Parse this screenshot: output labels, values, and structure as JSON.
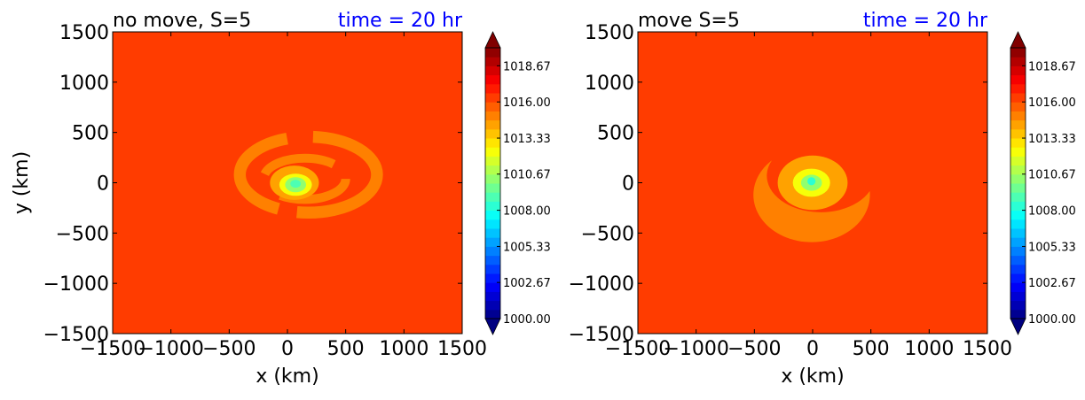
{
  "chart_data": [
    {
      "type": "contourf",
      "title_left": "no move, S=5",
      "title_right": "time = 20 hr",
      "title_right_color": "#0000ff",
      "xlabel": "x (km)",
      "ylabel": "y (km)",
      "xlim": [
        -1500,
        1500
      ],
      "ylim": [
        -1500,
        1500
      ],
      "xticks": [
        -1500,
        -1000,
        -500,
        0,
        500,
        1000,
        1500
      ],
      "yticks": [
        -1500,
        -1000,
        -500,
        0,
        500,
        1000,
        1500
      ],
      "xtick_labels": [
        "−1500",
        "−1000",
        "−500",
        "0",
        "500",
        "1000",
        "1500"
      ],
      "ytick_labels": [
        "−1500",
        "−1000",
        "−500",
        "0",
        "500",
        "1000",
        "1500"
      ],
      "background_level": 1016.5,
      "features": [
        {
          "name": "outer-ring",
          "level": 1015.0,
          "center": [
            180,
            80
          ],
          "radii": [
            640,
            410
          ],
          "note": "broken spiral band around the low"
        },
        {
          "name": "inner-band",
          "level": 1014.3,
          "center": [
            60,
            0
          ],
          "radii": [
            210,
            170
          ]
        },
        {
          "name": "core-1",
          "level": 1012.5,
          "center": [
            70,
            -20
          ],
          "radii": [
            140,
            110
          ]
        },
        {
          "name": "core-2",
          "level": 1010.6,
          "center": [
            70,
            -20
          ],
          "radii": [
            90,
            75
          ]
        },
        {
          "name": "core-3",
          "level": 1008.9,
          "center": [
            70,
            -10
          ],
          "radii": [
            45,
            40
          ]
        }
      ]
    },
    {
      "type": "contourf",
      "title_left": "move S=5",
      "title_right": "time = 20 hr",
      "title_right_color": "#0000ff",
      "xlabel": "x (km)",
      "ylabel": "",
      "xlim": [
        -1500,
        1500
      ],
      "ylim": [
        -1500,
        1500
      ],
      "xticks": [
        -1500,
        -1000,
        -500,
        0,
        500,
        1000,
        1500
      ],
      "yticks": [
        -1500,
        -1000,
        -500,
        0,
        500,
        1000,
        1500
      ],
      "xtick_labels": [
        "−1500",
        "−1000",
        "−500",
        "0",
        "500",
        "1000",
        "1500"
      ],
      "ytick_labels": [
        "−1500",
        "−1000",
        "−500",
        "0",
        "500",
        "1000",
        "1500"
      ],
      "background_level": 1016.5,
      "features": [
        {
          "name": "outer-crescent",
          "level": 1015.0,
          "center": [
            0,
            -130
          ],
          "radii": [
            500,
            470
          ],
          "note": "crescent-shaped band, open to the north-east"
        },
        {
          "name": "inner-band",
          "level": 1014.3,
          "center": [
            0,
            0
          ],
          "radii": [
            300,
            270
          ]
        },
        {
          "name": "core-1",
          "level": 1012.5,
          "center": [
            -10,
            0
          ],
          "radii": [
            160,
            140
          ]
        },
        {
          "name": "core-2",
          "level": 1010.6,
          "center": [
            -10,
            0
          ],
          "radii": [
            90,
            80
          ]
        },
        {
          "name": "core-3",
          "level": 1008.3,
          "center": [
            -10,
            15
          ],
          "radii": [
            35,
            40
          ]
        }
      ]
    }
  ],
  "colorbar": {
    "levels_min": 1000.0,
    "levels_max": 1020.0,
    "n_bands": 30,
    "extend": "both",
    "tick_values": [
      1000.0,
      1002.67,
      1005.33,
      1008.0,
      1010.67,
      1013.33,
      1016.0,
      1018.67
    ],
    "tick_labels": [
      "1000.00",
      "1002.67",
      "1005.33",
      "1008.00",
      "1010.67",
      "1013.33",
      "1016.00",
      "1018.67"
    ],
    "colormap": "jet",
    "underflow_color": "#000080",
    "overflow_color": "#800000"
  }
}
